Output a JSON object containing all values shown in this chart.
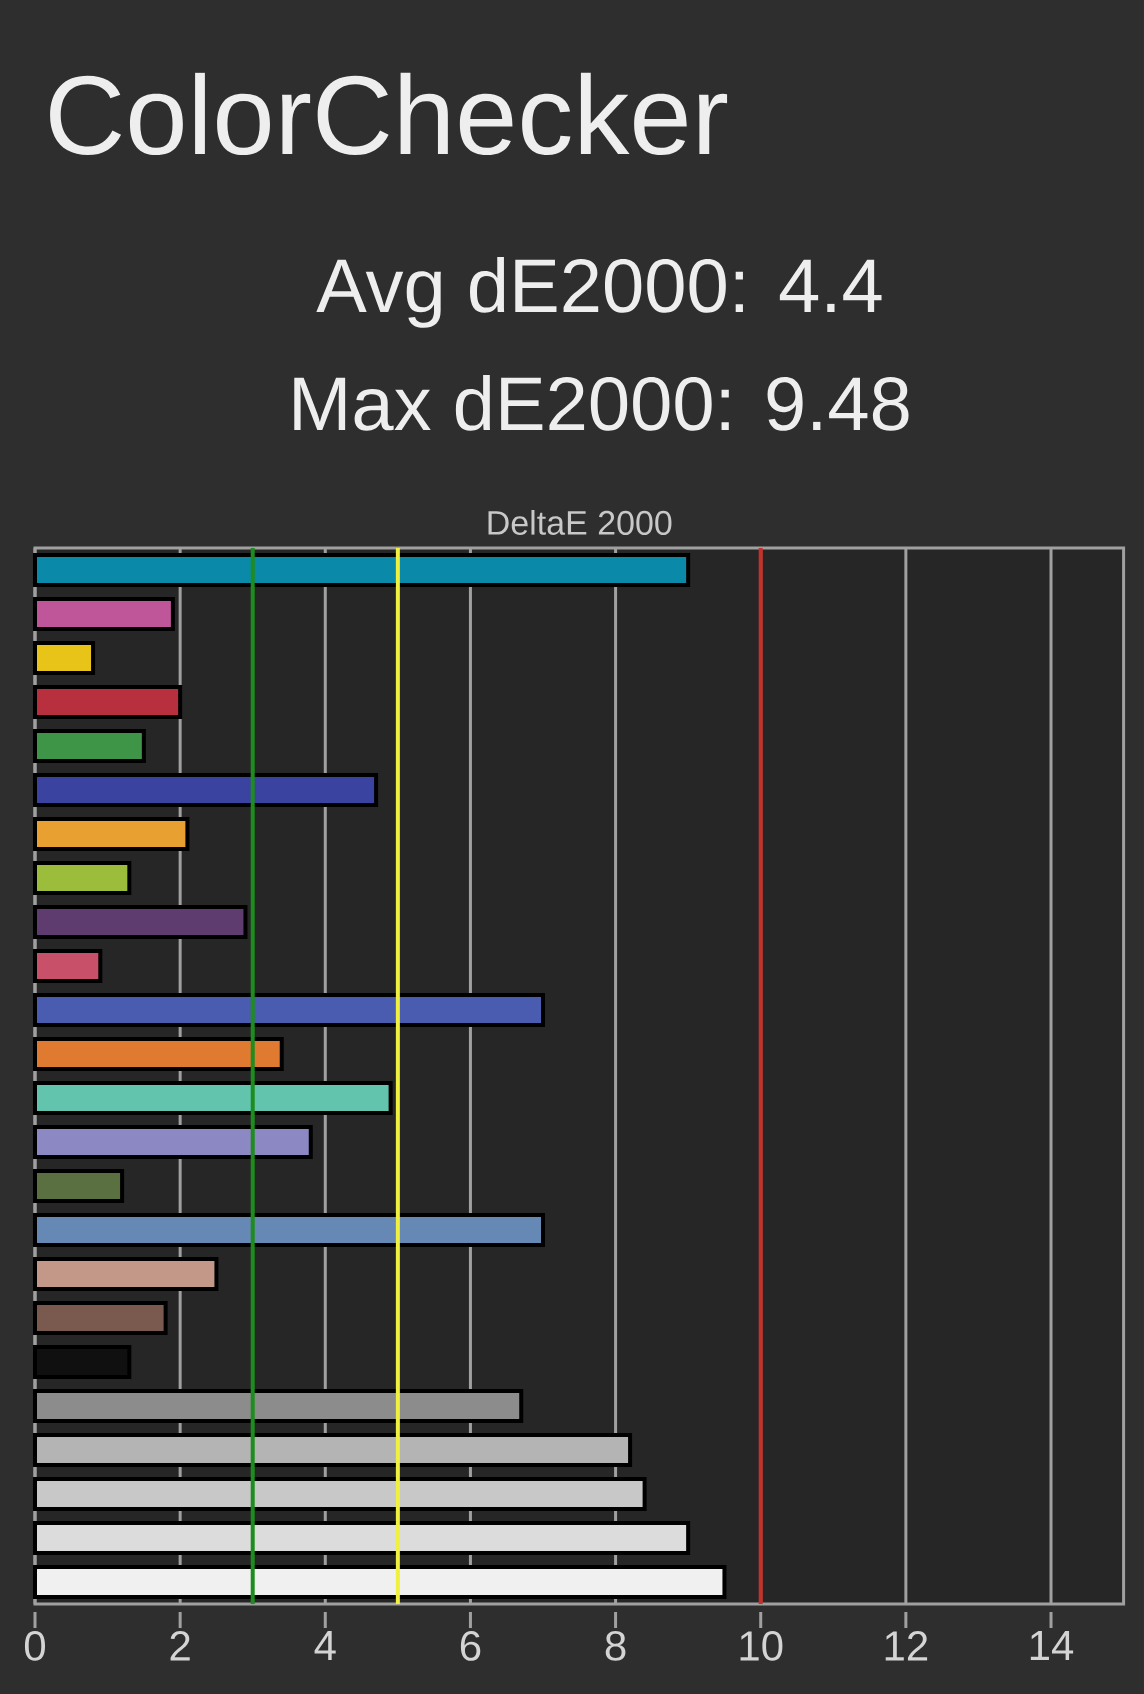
{
  "chart_data": {
    "type": "bar",
    "orientation": "horizontal",
    "title": "ColorChecker",
    "subtitle": "Avg dE2000: 4.4",
    "annotations": [
      "Max dE2000: 9.48"
    ],
    "xlabel": "DeltaE 2000",
    "categories": [
      null,
      null,
      null,
      null,
      null,
      null,
      null,
      null,
      null,
      null,
      null,
      null,
      null,
      null,
      null,
      null,
      null,
      null,
      null,
      null,
      null,
      null,
      null,
      null
    ],
    "values": [
      9.0,
      1.9,
      0.8,
      2.0,
      1.5,
      4.7,
      2.1,
      1.3,
      2.9,
      0.9,
      7.0,
      3.4,
      4.9,
      3.8,
      1.2,
      7.0,
      2.5,
      1.8,
      1.3,
      6.7,
      8.2,
      8.4,
      9.0,
      9.5
    ],
    "colors": [
      "#0a8aa8",
      "#c0569a",
      "#e8c418",
      "#b8303e",
      "#3e9548",
      "#3a44a0",
      "#e8a030",
      "#9cbc3c",
      "#5e3c70",
      "#c85068",
      "#4a5cb0",
      "#e07a30",
      "#62c4ac",
      "#8c88c4",
      "#5a7040",
      "#6688b4",
      "#c49888",
      "#7a5a4e",
      "#101010",
      "#8c8c8c",
      "#b4b4b4",
      "#c8c8c8",
      "#dcdcdc",
      "#f0f0f0"
    ],
    "xlim": [
      0,
      15
    ],
    "xticks": [
      0,
      2,
      4,
      6,
      8,
      10,
      12,
      14
    ],
    "grid": "x",
    "ref_lines": [
      {
        "axis": "x",
        "value": 3,
        "color": "#1e8c1e"
      },
      {
        "axis": "x",
        "value": 5,
        "color": "#f0f040"
      },
      {
        "axis": "x",
        "value": 10,
        "color": "#c8302a"
      }
    ]
  }
}
